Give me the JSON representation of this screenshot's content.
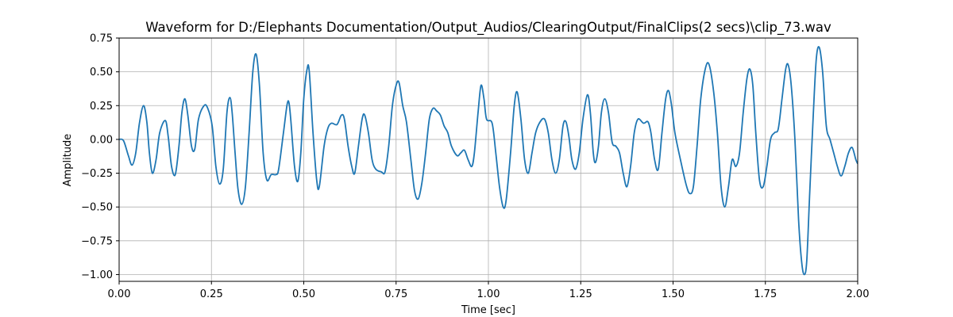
{
  "chart_data": {
    "type": "line",
    "title": "Waveform for D:/Elephants Documentation/Output_Audios/ClearingOutput/FinalClips(2 secs)\\clip_73.wav",
    "xlabel": "Time [sec]",
    "ylabel": "Amplitude",
    "xlim": [
      0,
      2
    ],
    "ylim": [
      -1.05,
      0.75
    ],
    "xticks": [
      0,
      0.25,
      0.5,
      0.75,
      1.0,
      1.25,
      1.5,
      1.75,
      2.0
    ],
    "xtick_labels": [
      "0.00",
      "0.25",
      "0.50",
      "0.75",
      "1.00",
      "1.25",
      "1.50",
      "1.75",
      "2.00"
    ],
    "yticks": [
      0.75,
      0.5,
      0.25,
      0,
      -0.25,
      -0.5,
      -0.75,
      -1.0
    ],
    "ytick_labels": [
      "0.75",
      "0.50",
      "0.25",
      "0.00",
      "−0.25",
      "−0.50",
      "−0.75",
      "−1.00"
    ],
    "grid": true,
    "line_color": "#1f77b4",
    "grid_color": "#b0b0b0",
    "series": [
      {
        "points": [
          [
            0.0,
            0.0
          ],
          [
            0.012,
            -0.01
          ],
          [
            0.025,
            -0.12
          ],
          [
            0.035,
            -0.19
          ],
          [
            0.045,
            -0.1
          ],
          [
            0.055,
            0.12
          ],
          [
            0.066,
            0.25
          ],
          [
            0.075,
            0.13
          ],
          [
            0.082,
            -0.1
          ],
          [
            0.09,
            -0.25
          ],
          [
            0.1,
            -0.15
          ],
          [
            0.11,
            0.05
          ],
          [
            0.125,
            0.14
          ],
          [
            0.133,
            0.02
          ],
          [
            0.142,
            -0.2
          ],
          [
            0.152,
            -0.26
          ],
          [
            0.162,
            -0.05
          ],
          [
            0.17,
            0.2
          ],
          [
            0.178,
            0.3
          ],
          [
            0.186,
            0.18
          ],
          [
            0.196,
            -0.05
          ],
          [
            0.205,
            -0.07
          ],
          [
            0.215,
            0.15
          ],
          [
            0.23,
            0.25
          ],
          [
            0.24,
            0.23
          ],
          [
            0.252,
            0.1
          ],
          [
            0.262,
            -0.2
          ],
          [
            0.272,
            -0.33
          ],
          [
            0.282,
            -0.22
          ],
          [
            0.292,
            0.2
          ],
          [
            0.3,
            0.31
          ],
          [
            0.306,
            0.2
          ],
          [
            0.314,
            -0.1
          ],
          [
            0.322,
            -0.37
          ],
          [
            0.332,
            -0.48
          ],
          [
            0.342,
            -0.35
          ],
          [
            0.352,
            0.05
          ],
          [
            0.362,
            0.5
          ],
          [
            0.371,
            0.63
          ],
          [
            0.38,
            0.4
          ],
          [
            0.39,
            -0.1
          ],
          [
            0.4,
            -0.3
          ],
          [
            0.412,
            -0.26
          ],
          [
            0.425,
            -0.26
          ],
          [
            0.432,
            -0.22
          ],
          [
            0.445,
            0.05
          ],
          [
            0.455,
            0.26
          ],
          [
            0.46,
            0.27
          ],
          [
            0.465,
            0.14
          ],
          [
            0.475,
            -0.2
          ],
          [
            0.484,
            -0.31
          ],
          [
            0.492,
            -0.1
          ],
          [
            0.5,
            0.3
          ],
          [
            0.509,
            0.52
          ],
          [
            0.515,
            0.5
          ],
          [
            0.525,
            0.05
          ],
          [
            0.535,
            -0.3
          ],
          [
            0.542,
            -0.35
          ],
          [
            0.555,
            -0.05
          ],
          [
            0.565,
            0.08
          ],
          [
            0.575,
            0.12
          ],
          [
            0.59,
            0.11
          ],
          [
            0.602,
            0.18
          ],
          [
            0.61,
            0.15
          ],
          [
            0.62,
            -0.05
          ],
          [
            0.63,
            -0.2
          ],
          [
            0.638,
            -0.25
          ],
          [
            0.648,
            -0.05
          ],
          [
            0.658,
            0.15
          ],
          [
            0.665,
            0.18
          ],
          [
            0.675,
            0.05
          ],
          [
            0.685,
            -0.15
          ],
          [
            0.695,
            -0.22
          ],
          [
            0.71,
            -0.24
          ],
          [
            0.72,
            -0.24
          ],
          [
            0.73,
            -0.05
          ],
          [
            0.74,
            0.25
          ],
          [
            0.75,
            0.4
          ],
          [
            0.758,
            0.42
          ],
          [
            0.768,
            0.25
          ],
          [
            0.778,
            0.13
          ],
          [
            0.79,
            -0.15
          ],
          [
            0.8,
            -0.38
          ],
          [
            0.81,
            -0.44
          ],
          [
            0.82,
            -0.32
          ],
          [
            0.83,
            -0.1
          ],
          [
            0.84,
            0.15
          ],
          [
            0.85,
            0.23
          ],
          [
            0.86,
            0.21
          ],
          [
            0.87,
            0.18
          ],
          [
            0.88,
            0.1
          ],
          [
            0.89,
            0.05
          ],
          [
            0.9,
            -0.05
          ],
          [
            0.915,
            -0.12
          ],
          [
            0.925,
            -0.1
          ],
          [
            0.935,
            -0.08
          ],
          [
            0.945,
            -0.15
          ],
          [
            0.955,
            -0.2
          ],
          [
            0.962,
            -0.1
          ],
          [
            0.972,
            0.2
          ],
          [
            0.98,
            0.4
          ],
          [
            0.988,
            0.3
          ],
          [
            0.995,
            0.15
          ],
          [
            1.01,
            0.12
          ],
          [
            1.02,
            -0.1
          ],
          [
            1.03,
            -0.35
          ],
          [
            1.04,
            -0.5
          ],
          [
            1.048,
            -0.45
          ],
          [
            1.06,
            -0.1
          ],
          [
            1.07,
            0.25
          ],
          [
            1.078,
            0.35
          ],
          [
            1.088,
            0.15
          ],
          [
            1.098,
            -0.15
          ],
          [
            1.108,
            -0.25
          ],
          [
            1.118,
            -0.1
          ],
          [
            1.128,
            0.05
          ],
          [
            1.14,
            0.13
          ],
          [
            1.152,
            0.15
          ],
          [
            1.162,
            0.05
          ],
          [
            1.172,
            -0.15
          ],
          [
            1.182,
            -0.25
          ],
          [
            1.192,
            -0.15
          ],
          [
            1.202,
            0.1
          ],
          [
            1.21,
            0.13
          ],
          [
            1.218,
            0.02
          ],
          [
            1.226,
            -0.15
          ],
          [
            1.236,
            -0.22
          ],
          [
            1.246,
            -0.1
          ],
          [
            1.256,
            0.15
          ],
          [
            1.268,
            0.33
          ],
          [
            1.276,
            0.2
          ],
          [
            1.284,
            -0.1
          ],
          [
            1.29,
            -0.17
          ],
          [
            1.298,
            -0.05
          ],
          [
            1.306,
            0.2
          ],
          [
            1.315,
            0.3
          ],
          [
            1.325,
            0.2
          ],
          [
            1.335,
            -0.02
          ],
          [
            1.345,
            -0.05
          ],
          [
            1.355,
            -0.1
          ],
          [
            1.365,
            -0.25
          ],
          [
            1.375,
            -0.35
          ],
          [
            1.385,
            -0.2
          ],
          [
            1.395,
            0.05
          ],
          [
            1.405,
            0.15
          ],
          [
            1.42,
            0.12
          ],
          [
            1.432,
            0.13
          ],
          [
            1.44,
            0.05
          ],
          [
            1.45,
            -0.15
          ],
          [
            1.46,
            -0.22
          ],
          [
            1.47,
            0.05
          ],
          [
            1.48,
            0.3
          ],
          [
            1.488,
            0.36
          ],
          [
            1.496,
            0.25
          ],
          [
            1.505,
            0.05
          ],
          [
            1.52,
            -0.15
          ],
          [
            1.535,
            -0.33
          ],
          [
            1.545,
            -0.4
          ],
          [
            1.555,
            -0.35
          ],
          [
            1.565,
            -0.05
          ],
          [
            1.575,
            0.3
          ],
          [
            1.588,
            0.53
          ],
          [
            1.598,
            0.55
          ],
          [
            1.61,
            0.35
          ],
          [
            1.62,
            0.05
          ],
          [
            1.63,
            -0.35
          ],
          [
            1.64,
            -0.5
          ],
          [
            1.65,
            -0.35
          ],
          [
            1.66,
            -0.15
          ],
          [
            1.67,
            -0.2
          ],
          [
            1.68,
            -0.1
          ],
          [
            1.69,
            0.2
          ],
          [
            1.7,
            0.45
          ],
          [
            1.708,
            0.52
          ],
          [
            1.716,
            0.4
          ],
          [
            1.724,
            0.05
          ],
          [
            1.734,
            -0.3
          ],
          [
            1.744,
            -0.35
          ],
          [
            1.754,
            -0.2
          ],
          [
            1.764,
            0.0
          ],
          [
            1.775,
            0.05
          ],
          [
            1.785,
            0.08
          ],
          [
            1.795,
            0.3
          ],
          [
            1.805,
            0.52
          ],
          [
            1.812,
            0.55
          ],
          [
            1.82,
            0.4
          ],
          [
            1.83,
            0.0
          ],
          [
            1.84,
            -0.6
          ],
          [
            1.848,
            -0.9
          ],
          [
            1.855,
            -1.0
          ],
          [
            1.862,
            -0.9
          ],
          [
            1.87,
            -0.4
          ],
          [
            1.88,
            0.2
          ],
          [
            1.888,
            0.6
          ],
          [
            1.896,
            0.68
          ],
          [
            1.905,
            0.5
          ],
          [
            1.915,
            0.1
          ],
          [
            1.925,
            0.0
          ],
          [
            1.935,
            -0.1
          ],
          [
            1.945,
            -0.2
          ],
          [
            1.955,
            -0.27
          ],
          [
            1.965,
            -0.2
          ],
          [
            1.975,
            -0.1
          ],
          [
            1.985,
            -0.06
          ],
          [
            1.995,
            -0.15
          ],
          [
            2.0,
            -0.18
          ]
        ]
      }
    ]
  }
}
